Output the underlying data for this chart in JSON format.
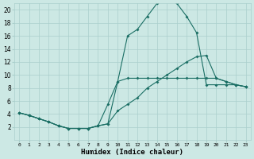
{
  "xlabel": "Humidex (Indice chaleur)",
  "xlim": [
    -0.5,
    23.5
  ],
  "ylim": [
    0,
    21
  ],
  "xticks": [
    0,
    1,
    2,
    3,
    4,
    5,
    6,
    7,
    8,
    9,
    10,
    11,
    12,
    13,
    14,
    15,
    16,
    17,
    18,
    19,
    20,
    21,
    22,
    23
  ],
  "yticks": [
    2,
    4,
    6,
    8,
    10,
    12,
    14,
    16,
    18,
    20
  ],
  "bg_color": "#cce8e4",
  "grid_color": "#aacfcc",
  "line_color": "#1a6e64",
  "curve1_x": [
    0,
    1,
    2,
    3,
    4,
    5,
    6,
    7,
    8,
    9,
    10,
    11,
    12,
    13,
    14,
    15,
    16,
    17,
    18,
    19,
    20,
    21,
    22,
    23
  ],
  "curve1_y": [
    4.2,
    3.8,
    3.3,
    2.8,
    2.2,
    1.8,
    1.8,
    1.8,
    2.2,
    2.5,
    9.0,
    16.0,
    17.0,
    19.0,
    21.0,
    21.5,
    21.0,
    19.0,
    16.5,
    8.5,
    8.5,
    8.5,
    8.5,
    8.2
  ],
  "curve2_x": [
    0,
    1,
    2,
    3,
    4,
    5,
    6,
    7,
    8,
    9,
    10,
    11,
    12,
    13,
    14,
    15,
    16,
    17,
    18,
    19,
    20,
    21,
    22,
    23
  ],
  "curve2_y": [
    4.2,
    3.8,
    3.3,
    2.8,
    2.2,
    1.8,
    1.8,
    1.8,
    2.2,
    2.5,
    4.5,
    5.5,
    6.5,
    8.0,
    9.0,
    10.0,
    11.0,
    12.0,
    12.8,
    13.0,
    9.5,
    9.0,
    8.5,
    8.2
  ],
  "curve3_x": [
    0,
    1,
    2,
    3,
    4,
    5,
    6,
    7,
    8,
    9,
    10,
    11,
    12,
    13,
    14,
    15,
    16,
    17,
    18,
    19,
    20,
    21,
    22,
    23
  ],
  "curve3_y": [
    4.2,
    3.8,
    3.3,
    2.8,
    2.2,
    1.8,
    1.8,
    1.8,
    2.2,
    5.5,
    9.0,
    9.5,
    9.5,
    9.5,
    9.5,
    9.5,
    9.5,
    9.5,
    9.5,
    9.5,
    9.5,
    9.0,
    8.5,
    8.2
  ]
}
